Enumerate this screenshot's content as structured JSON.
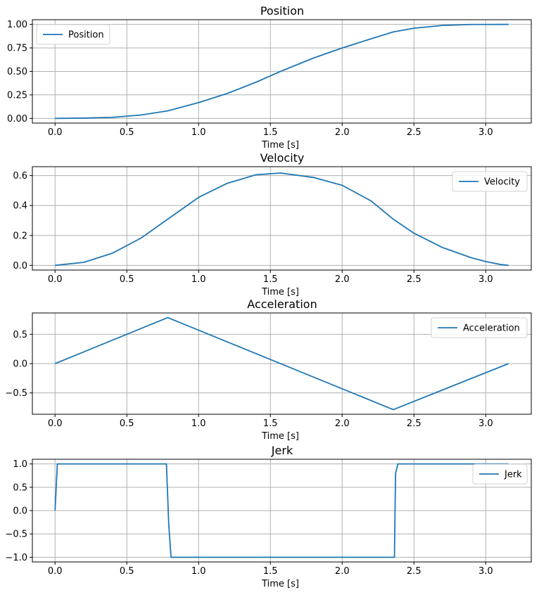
{
  "colors": {
    "series": "#1f77b4"
  },
  "chart_data": [
    {
      "type": "line",
      "title": "Position",
      "xlabel": "Time [s]",
      "ylabel": "",
      "xlim": [
        -0.158,
        3.3172
      ],
      "ylim": [
        -0.05,
        1.05
      ],
      "xticks": [
        "0.0",
        "0.5",
        "1.0",
        "1.5",
        "2.0",
        "2.5",
        "3.0"
      ],
      "xtick_values": [
        0,
        0.5,
        1,
        1.5,
        2,
        2.5,
        3
      ],
      "yticks": [
        "0.00",
        "0.25",
        "0.50",
        "0.75",
        "1.00"
      ],
      "ytick_values": [
        0,
        0.25,
        0.5,
        0.75,
        1
      ],
      "grid": true,
      "legend_position": "upper-left",
      "series": [
        {
          "name": "Position",
          "x": [
            0,
            0.2,
            0.4,
            0.6,
            0.785,
            1.0,
            1.2,
            1.4,
            1.571,
            1.8,
            2.0,
            2.2,
            2.356,
            2.5,
            2.7,
            2.9,
            3.0,
            3.1,
            3.159
          ],
          "values": [
            0,
            0.003,
            0.011,
            0.036,
            0.08,
            0.168,
            0.265,
            0.385,
            0.5,
            0.642,
            0.749,
            0.846,
            0.92,
            0.959,
            0.989,
            0.9993,
            0.99975,
            0.99999,
            1.0
          ]
        }
      ]
    },
    {
      "type": "line",
      "title": "Velocity",
      "xlabel": "Time [s]",
      "ylabel": "",
      "xlim": [
        -0.158,
        3.3172
      ],
      "ylim": [
        -0.0314,
        0.6594
      ],
      "xticks": [
        "0.0",
        "0.5",
        "1.0",
        "1.5",
        "2.0",
        "2.5",
        "3.0"
      ],
      "xtick_values": [
        0,
        0.5,
        1,
        1.5,
        2,
        2.5,
        3
      ],
      "yticks": [
        "0.0",
        "0.2",
        "0.4",
        "0.6"
      ],
      "ytick_values": [
        0,
        0.2,
        0.4,
        0.6
      ],
      "grid": true,
      "legend_position": "upper-right",
      "series": [
        {
          "name": "Velocity",
          "x": [
            0,
            0.2,
            0.4,
            0.6,
            0.785,
            1.0,
            1.2,
            1.4,
            1.571,
            1.8,
            2.0,
            2.2,
            2.356,
            2.5,
            2.7,
            2.9,
            3.0,
            3.1,
            3.159
          ],
          "values": [
            0,
            0.0203,
            0.0815,
            0.183,
            0.3085,
            0.4546,
            0.5484,
            0.6054,
            0.617,
            0.5875,
            0.5348,
            0.4316,
            0.3085,
            0.215,
            0.1188,
            0.0509,
            0.0255,
            0.0065,
            0.0
          ]
        }
      ]
    },
    {
      "type": "line",
      "title": "Acceleration",
      "xlabel": "Time [s]",
      "ylabel": "",
      "xlim": [
        -0.158,
        3.3172
      ],
      "ylim": [
        -0.864,
        0.864
      ],
      "xticks": [
        "0.0",
        "0.5",
        "1.0",
        "1.5",
        "2.0",
        "2.5",
        "3.0"
      ],
      "xtick_values": [
        0,
        0.5,
        1,
        1.5,
        2,
        2.5,
        3
      ],
      "yticks": [
        "−0.5",
        "0.0",
        "0.5"
      ],
      "ytick_values": [
        -0.5,
        0,
        0.5
      ],
      "grid": true,
      "legend_position": "upper-right",
      "series": [
        {
          "name": "Acceleration",
          "x": [
            0,
            0.785,
            2.356,
            3.159
          ],
          "values": [
            0,
            0.785,
            -0.785,
            0.0
          ]
        }
      ]
    },
    {
      "type": "line",
      "title": "Jerk",
      "xlabel": "Time [s]",
      "ylabel": "",
      "xlim": [
        -0.158,
        3.3172
      ],
      "ylim": [
        -1.1,
        1.1
      ],
      "xticks": [
        "0.0",
        "0.5",
        "1.0",
        "1.5",
        "2.0",
        "2.5",
        "3.0"
      ],
      "xtick_values": [
        0,
        0.5,
        1,
        1.5,
        2,
        2.5,
        3
      ],
      "yticks": [
        "−1.0",
        "−0.5",
        "0.0",
        "0.5",
        "1.0"
      ],
      "ytick_values": [
        -1,
        -0.5,
        0,
        0.5,
        1
      ],
      "grid": true,
      "legend_position": "upper-right",
      "series": [
        {
          "name": "Jerk",
          "x": [
            0,
            0.016,
            0.776,
            0.792,
            0.808,
            2.364,
            2.372,
            2.388,
            3.159
          ],
          "values": [
            0,
            1,
            1,
            -0.3,
            -1,
            -1,
            0.8,
            1,
            1
          ]
        }
      ]
    }
  ]
}
